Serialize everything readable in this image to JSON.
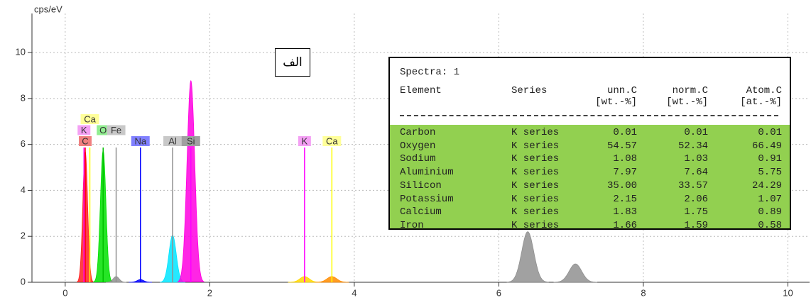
{
  "chart_data": {
    "type": "spectrum",
    "ylabel": "cps/eV",
    "xlim": [
      -0.46,
      10.3
    ],
    "ylim": [
      0,
      11.7
    ],
    "xticks": [
      0,
      2,
      4,
      6,
      8,
      10
    ],
    "yticks": [
      0,
      2,
      4,
      6,
      8,
      10
    ],
    "grid": true,
    "peaks": [
      {
        "x": 0.277,
        "y": 5.7,
        "color": "#ff2020"
      },
      {
        "x": 0.525,
        "y": 5.74,
        "color": "#00e000"
      },
      {
        "x": 0.705,
        "y": 0.25,
        "color": "#909090"
      },
      {
        "x": 1.041,
        "y": 0.12,
        "color": "#0000ff"
      },
      {
        "x": 1.486,
        "y": 2.04,
        "color": "#00e5ff"
      },
      {
        "x": 1.739,
        "y": 8.77,
        "color": "#ff00e0"
      },
      {
        "x": 3.312,
        "y": 0.25,
        "color": "#ffd700"
      },
      {
        "x": 3.69,
        "y": 0.25,
        "color": "#ff8c00"
      },
      {
        "x": 6.4,
        "y": 2.2,
        "color": "#909090"
      },
      {
        "x": 7.06,
        "y": 0.8,
        "color": "#909090"
      }
    ],
    "lines": [
      {
        "element": "C",
        "x": 0.277,
        "color": "#ff0000",
        "box": "#f08080"
      },
      {
        "element": "K",
        "x": 0.26,
        "color": "#ff00ff",
        "box": "#f4a0f4"
      },
      {
        "element": "Ca",
        "x": 0.341,
        "color": "#ffff00",
        "box": "#ffff99"
      },
      {
        "element": "O",
        "x": 0.525,
        "color": "#00c000",
        "box": "#90ee90"
      },
      {
        "element": "Fe",
        "x": 0.705,
        "color": "#909090",
        "box": "#c8c8c8"
      },
      {
        "element": "Na",
        "x": 1.041,
        "color": "#0000ff",
        "box": "#8080ff"
      },
      {
        "element": "Al",
        "x": 1.486,
        "color": "#909090",
        "box": "#c8c8c8"
      },
      {
        "element": "Si",
        "x": 1.739,
        "color": "#ff00ff",
        "box": "#a0a0a0"
      },
      {
        "element": "K",
        "x": 3.312,
        "color": "#ff00ff",
        "box": "#f4a0f4"
      },
      {
        "element": "Ca",
        "x": 3.69,
        "color": "#ffff00",
        "box": "#ffff99"
      }
    ],
    "annotation": "الف",
    "table": {
      "title": "Spectra: 1",
      "headers": [
        [
          "Element",
          ""
        ],
        [
          "Series",
          ""
        ],
        [
          "unn.C",
          "[wt.-%]"
        ],
        [
          "norm.C",
          "[wt.-%]"
        ],
        [
          "Atom.C",
          "[at.-%]"
        ]
      ],
      "rows": [
        [
          "Carbon",
          "K series",
          "0.01",
          "0.01",
          "0.01"
        ],
        [
          "Oxygen",
          "K series",
          "54.57",
          "52.34",
          "66.49"
        ],
        [
          "Sodium",
          "K series",
          "1.08",
          "1.03",
          "0.91"
        ],
        [
          "Aluminium",
          "K series",
          "7.97",
          "7.64",
          "5.75"
        ],
        [
          "Silicon",
          "K series",
          "35.00",
          "33.57",
          "24.29"
        ],
        [
          "Potassium",
          "K series",
          "2.15",
          "2.06",
          "1.07"
        ],
        [
          "Calcium",
          "K series",
          "1.83",
          "1.75",
          "0.89"
        ],
        [
          "Iron",
          "K series",
          "1.66",
          "1.59",
          "0.58"
        ]
      ]
    }
  }
}
